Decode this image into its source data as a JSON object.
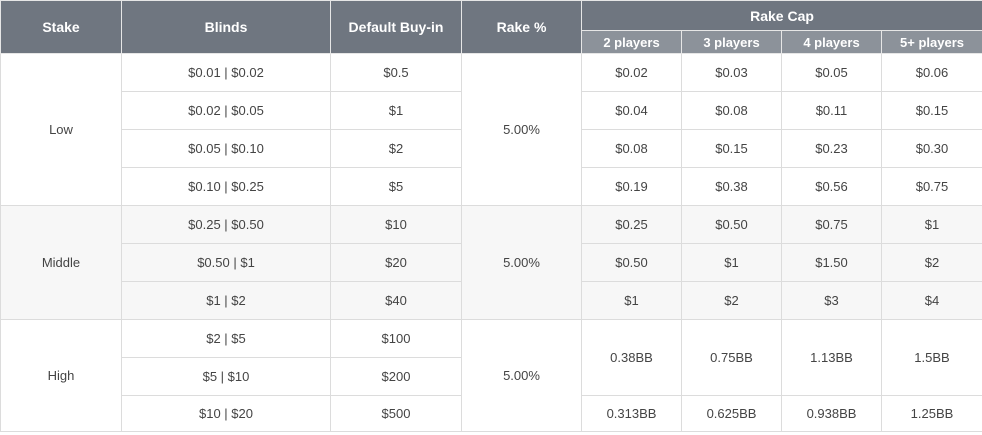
{
  "headers": {
    "stake": "Stake",
    "blinds": "Blinds",
    "buyin": "Default Buy-in",
    "rake": "Rake %",
    "rake_cap": "Rake Cap",
    "players": [
      "2 players",
      "3 players",
      "4 players",
      "5+ players"
    ]
  },
  "colors": {
    "header_primary": "#6f7680",
    "header_secondary": "#8c929a",
    "middle_band": "#f7f7f7"
  },
  "groups": [
    {
      "stake": "Low",
      "rake": "5.00%",
      "rows": [
        {
          "blinds": "$0.01 | $0.02",
          "buyin": "$0.5",
          "caps": [
            "$0.02",
            "$0.03",
            "$0.05",
            "$0.06"
          ]
        },
        {
          "blinds": "$0.02 | $0.05",
          "buyin": "$1",
          "caps": [
            "$0.04",
            "$0.08",
            "$0.11",
            "$0.15"
          ]
        },
        {
          "blinds": "$0.05 | $0.10",
          "buyin": "$2",
          "caps": [
            "$0.08",
            "$0.15",
            "$0.23",
            "$0.30"
          ]
        },
        {
          "blinds": "$0.10 | $0.25",
          "buyin": "$5",
          "caps": [
            "$0.19",
            "$0.38",
            "$0.56",
            "$0.75"
          ]
        }
      ]
    },
    {
      "stake": "Middle",
      "rake": "5.00%",
      "rows": [
        {
          "blinds": "$0.25 | $0.50",
          "buyin": "$10",
          "caps": [
            "$0.25",
            "$0.50",
            "$0.75",
            "$1"
          ]
        },
        {
          "blinds": "$0.50 | $1",
          "buyin": "$20",
          "caps": [
            "$0.50",
            "$1",
            "$1.50",
            "$2"
          ]
        },
        {
          "blinds": "$1 | $2",
          "buyin": "$40",
          "caps": [
            "$1",
            "$2",
            "$3",
            "$4"
          ]
        }
      ]
    },
    {
      "stake": "High",
      "rake": "5.00%",
      "rows": [
        {
          "blinds": "$2 | $5",
          "buyin": "$100",
          "caps": [
            "0.38BB",
            "0.75BB",
            "1.13BB",
            "1.5BB"
          ],
          "caps_rowspan": 2
        },
        {
          "blinds": "$5 | $10",
          "buyin": "$200"
        },
        {
          "blinds": "$10 | $20",
          "buyin": "$500",
          "caps": [
            "0.313BB",
            "0.625BB",
            "0.938BB",
            "1.25BB"
          ]
        }
      ]
    }
  ]
}
